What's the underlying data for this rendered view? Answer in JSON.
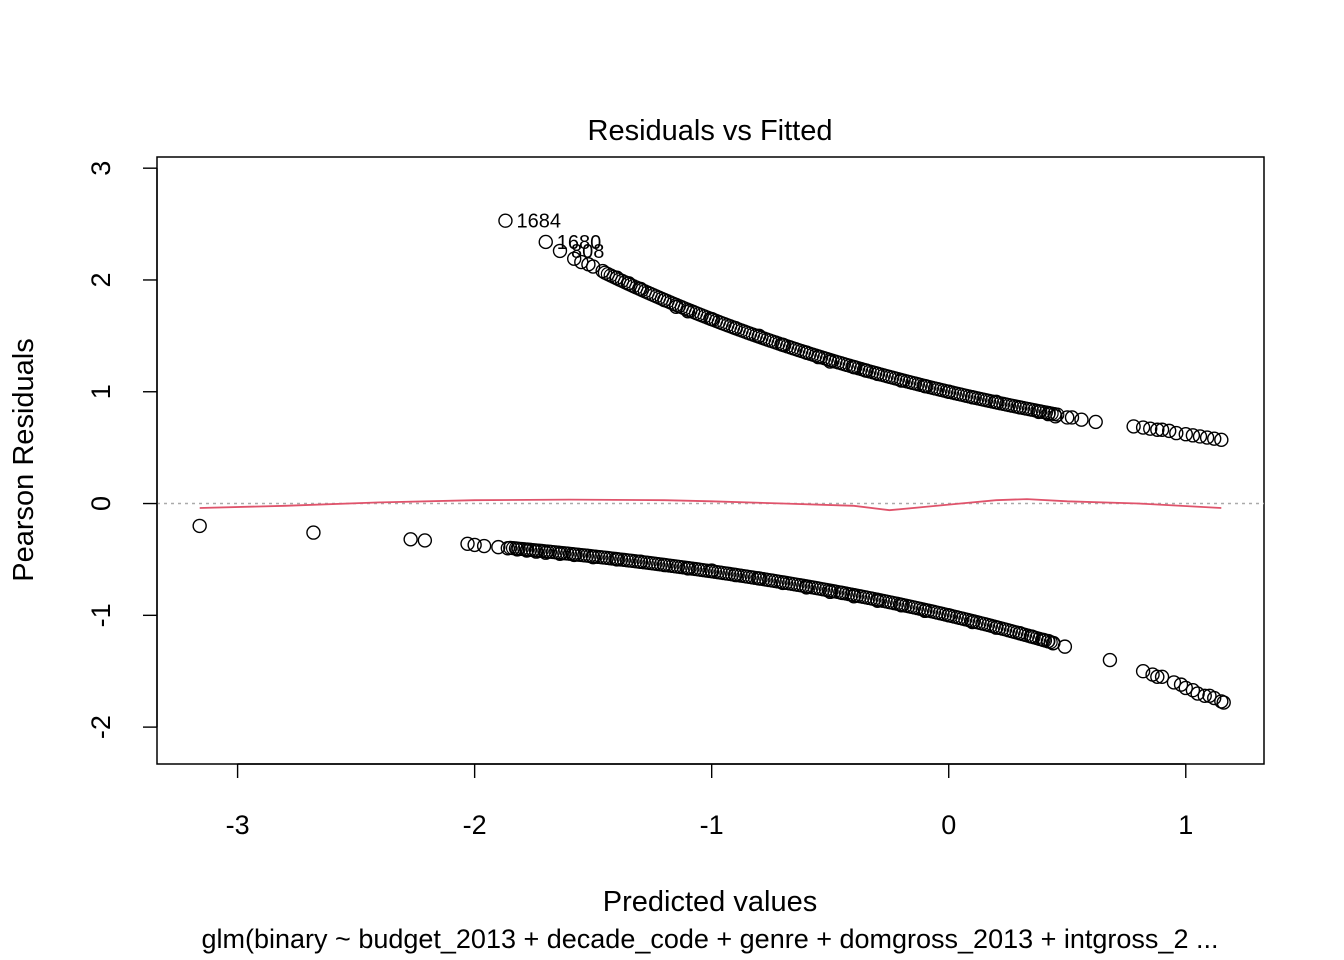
{
  "chart_data": {
    "type": "scatter",
    "title": "Residuals vs Fitted",
    "xlabel": "Predicted values",
    "ylabel": "Pearson Residuals",
    "subtitle": "glm(binary ~ budget_2013 + decade_code + genre + domgross_2013 + intgross_2 ...",
    "xlim": [
      -3.34,
      1.33
    ],
    "ylim": [
      -2.33,
      3.1
    ],
    "x_ticks": [
      -3,
      -2,
      -1,
      0,
      1
    ],
    "x_tick_labels": [
      "-3",
      "-2",
      "-1",
      "0",
      "1"
    ],
    "y_ticks": [
      -2,
      -1,
      0,
      1,
      2,
      3
    ],
    "y_tick_labels": [
      "-2",
      "-1",
      "0",
      "1",
      "2",
      "3"
    ],
    "grid": false,
    "reference_line": {
      "y": 0,
      "style": "dotted",
      "color": "#AAAAAA"
    },
    "smooth_line": {
      "color": "#DF536B",
      "points": [
        [
          -3.16,
          -0.04
        ],
        [
          -2.8,
          -0.02
        ],
        [
          -2.4,
          0.01
        ],
        [
          -2.0,
          0.03
        ],
        [
          -1.6,
          0.035
        ],
        [
          -1.2,
          0.03
        ],
        [
          -1.0,
          0.02
        ],
        [
          -0.7,
          0.0
        ],
        [
          -0.4,
          -0.02
        ],
        [
          -0.25,
          -0.06
        ],
        [
          -0.1,
          -0.03
        ],
        [
          0.05,
          0.0
        ],
        [
          0.2,
          0.03
        ],
        [
          0.33,
          0.04
        ],
        [
          0.5,
          0.02
        ],
        [
          0.8,
          0.0
        ],
        [
          1.15,
          -0.04
        ]
      ]
    },
    "labeled_points": [
      {
        "label": "1684",
        "x": -1.87,
        "y": 2.53
      },
      {
        "label": "1680",
        "x": -1.7,
        "y": 2.34
      },
      {
        "label": "808",
        "x": -1.64,
        "y": 2.26
      }
    ],
    "series": [
      {
        "marker": "open-circle",
        "x": [
          -3.16,
          -2.68,
          -2.27,
          -2.21,
          -2.03,
          -2.0,
          -1.96,
          -1.9,
          -1.86,
          -1.82,
          -1.78,
          -1.74,
          -1.7,
          -1.64,
          -1.58,
          -1.5,
          -1.4,
          -1.3,
          -1.2,
          -1.1,
          -1.0,
          -0.9,
          -0.8,
          -0.7,
          -0.6,
          -0.5,
          -0.45,
          -0.4,
          -0.3,
          -0.2,
          -0.1,
          0.0,
          0.1,
          0.2,
          0.3,
          0.35,
          0.4,
          0.42,
          0.44,
          0.49,
          0.68,
          0.82,
          0.86,
          0.88,
          0.9,
          0.95,
          0.98,
          1.0,
          1.03,
          1.05,
          1.08,
          1.1,
          1.12,
          1.15,
          1.16,
          -1.87,
          -1.7,
          -1.64,
          -1.58,
          -1.55,
          -1.52,
          -1.5,
          -1.46,
          -1.4,
          -1.35,
          -1.3,
          -1.2,
          -1.15,
          -1.1,
          -1.0,
          -0.9,
          -0.8,
          -0.7,
          -0.6,
          -0.55,
          -0.5,
          -0.4,
          -0.35,
          -0.3,
          -0.2,
          -0.1,
          0.0,
          0.1,
          0.2,
          0.3,
          0.38,
          0.42,
          0.45,
          0.5,
          0.52,
          0.56,
          0.62,
          0.78,
          0.82,
          0.85,
          0.88,
          0.9,
          0.93,
          0.96,
          1.0,
          1.03,
          1.06,
          1.09,
          1.12,
          1.15
        ],
        "y": [
          -0.2,
          -0.26,
          -0.32,
          -0.33,
          -0.36,
          -0.37,
          -0.38,
          -0.39,
          -0.4,
          -0.41,
          -0.42,
          -0.43,
          -0.44,
          -0.45,
          -0.46,
          -0.48,
          -0.5,
          -0.52,
          -0.55,
          -0.58,
          -0.6,
          -0.64,
          -0.67,
          -0.71,
          -0.75,
          -0.79,
          -0.8,
          -0.83,
          -0.87,
          -0.91,
          -0.96,
          -1.0,
          -1.06,
          -1.11,
          -1.16,
          -1.19,
          -1.22,
          -1.23,
          -1.25,
          -1.28,
          -1.4,
          -1.5,
          -1.53,
          -1.55,
          -1.55,
          -1.6,
          -1.62,
          -1.65,
          -1.67,
          -1.7,
          -1.72,
          -1.72,
          -1.74,
          -1.77,
          -1.78,
          2.53,
          2.34,
          2.26,
          2.19,
          2.16,
          2.14,
          2.12,
          2.08,
          2.02,
          1.97,
          1.92,
          1.82,
          1.76,
          1.72,
          1.65,
          1.57,
          1.5,
          1.42,
          1.35,
          1.31,
          1.27,
          1.22,
          1.19,
          1.16,
          1.1,
          1.05,
          1.0,
          0.95,
          0.91,
          0.86,
          0.82,
          0.8,
          0.78,
          0.77,
          0.77,
          0.75,
          0.73,
          0.69,
          0.68,
          0.67,
          0.66,
          0.66,
          0.65,
          0.63,
          0.62,
          0.61,
          0.6,
          0.59,
          0.58,
          0.57
        ]
      }
    ]
  }
}
